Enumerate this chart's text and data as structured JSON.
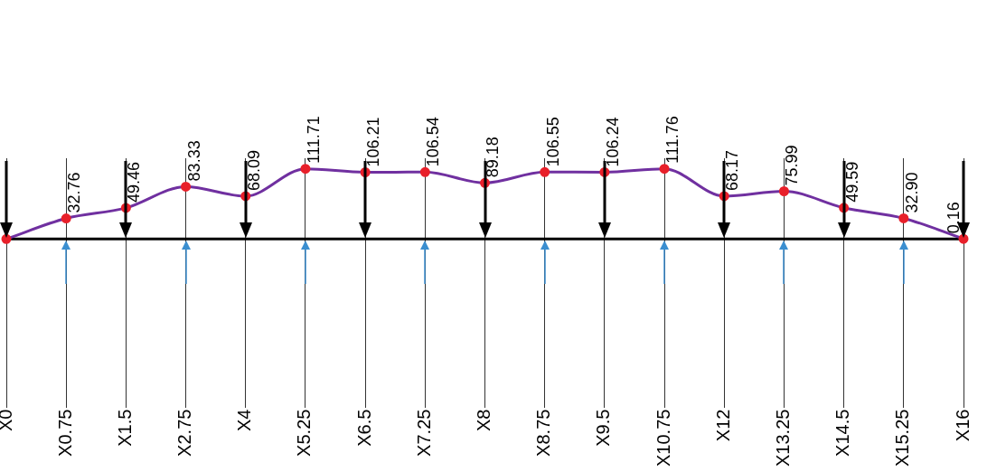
{
  "chart_data": {
    "type": "line",
    "categories": [
      "X0",
      "X0.75",
      "X1.5",
      "X2.75",
      "X4",
      "X5.25",
      "X6.5",
      "X7.25",
      "X8",
      "X8.75",
      "X9.5",
      "X10.75",
      "X12",
      "X13.25",
      "X14.5",
      "X15.25",
      "X16"
    ],
    "series": [
      {
        "color": "#7030a0",
        "colors": [
          "#e8202a",
          "#e8202a",
          "#e8202a",
          "#e8202a",
          "#e8202a",
          "#e8202a",
          "#e8202a",
          "#e8202a",
          "#e8202a",
          "#e8202a",
          "#e8202a",
          "#e8202a",
          "#e8202a",
          "#e8202a",
          "#e8202a",
          "#e8202a",
          "#e8202a"
        ],
        "values": [
          0,
          32.76,
          49.46,
          83.33,
          68.09,
          111.71,
          106.21,
          106.54,
          89.18,
          106.55,
          106.24,
          111.76,
          68.17,
          75.99,
          49.59,
          32.9,
          0.16
        ],
        "value_labels": [
          null,
          "32.76",
          "49.46",
          "83.33",
          "68.09",
          "111.71",
          "106.21",
          "106.54",
          "89.18",
          "106.55",
          "106.24",
          "111.76",
          "68.17",
          "75.99",
          "49.59",
          "32.90",
          "0.16"
        ]
      }
    ],
    "tick_labels": "x",
    "grid": "x",
    "legend": false,
    "marker": "circle",
    "line_style": "solid"
  }
}
